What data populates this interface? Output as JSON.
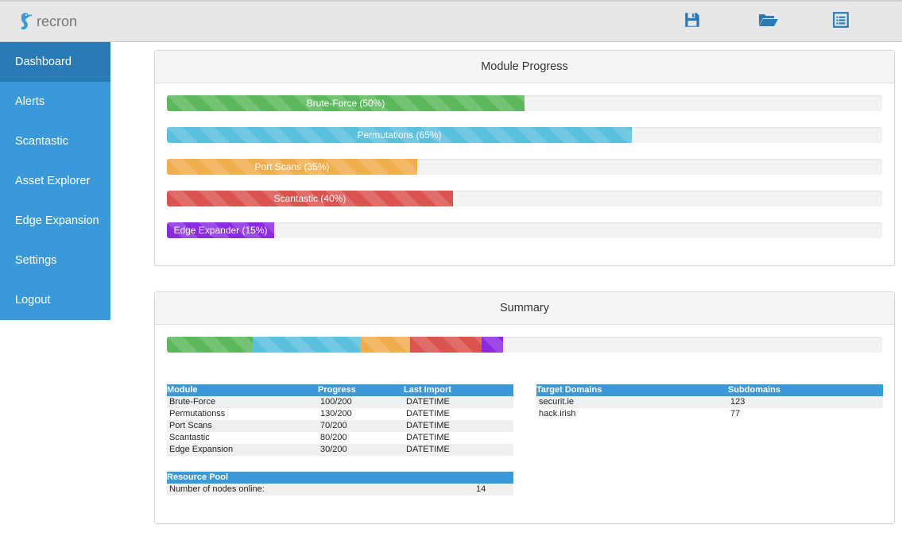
{
  "app": {
    "name": "recron"
  },
  "toolbar": {
    "icons": [
      "save-icon",
      "folder-open-icon",
      "list-icon"
    ]
  },
  "sidebar": {
    "items": [
      {
        "label": "Dashboard",
        "active": true
      },
      {
        "label": "Alerts"
      },
      {
        "label": "Scantastic"
      },
      {
        "label": "Asset Explorer"
      },
      {
        "label": "Edge Expansion"
      },
      {
        "label": "Settings"
      },
      {
        "label": "Logout"
      }
    ]
  },
  "module_progress": {
    "title": "Module Progress",
    "bars": [
      {
        "label": "Brute-Force (50%)",
        "percent": 50,
        "color": "#5cb85c"
      },
      {
        "label": "Permutations (65%)",
        "percent": 65,
        "color": "#5bc0de"
      },
      {
        "label": "Port Scans (35%)",
        "percent": 35,
        "color": "#f0ad4e"
      },
      {
        "label": "Scantastic (40%)",
        "percent": 40,
        "color": "#d9534f"
      },
      {
        "label": "Edge Expander (15%)",
        "percent": 15,
        "color": "#8a2be2"
      }
    ]
  },
  "summary": {
    "title": "Summary",
    "stacked": [
      {
        "percent": 12,
        "color": "#5cb85c"
      },
      {
        "percent": 15,
        "color": "#5bc0de"
      },
      {
        "percent": 7,
        "color": "#f0ad4e"
      },
      {
        "percent": 10,
        "color": "#d9534f"
      },
      {
        "percent": 3,
        "color": "#8a2be2"
      }
    ],
    "modules_table": {
      "headers": [
        "Module",
        "Progress",
        "Last Import"
      ],
      "rows": [
        [
          "Brute-Force",
          "100/200",
          "DATETIME"
        ],
        [
          "Permutationss",
          "130/200",
          "DATETIME"
        ],
        [
          "Port Scans",
          "70/200",
          "DATETIME"
        ],
        [
          "Scantastic",
          "80/200",
          "DATETIME"
        ],
        [
          "Edge Expansion",
          "30/200",
          "DATETIME"
        ]
      ]
    },
    "domains_table": {
      "headers": [
        "Target Domains",
        "Subdomains"
      ],
      "rows": [
        [
          "securit.ie",
          "123"
        ],
        [
          "hack.irish",
          "77"
        ]
      ]
    },
    "resource_table": {
      "header": "Resource Pool",
      "label": "Number of nodes online:",
      "value": "14"
    }
  }
}
